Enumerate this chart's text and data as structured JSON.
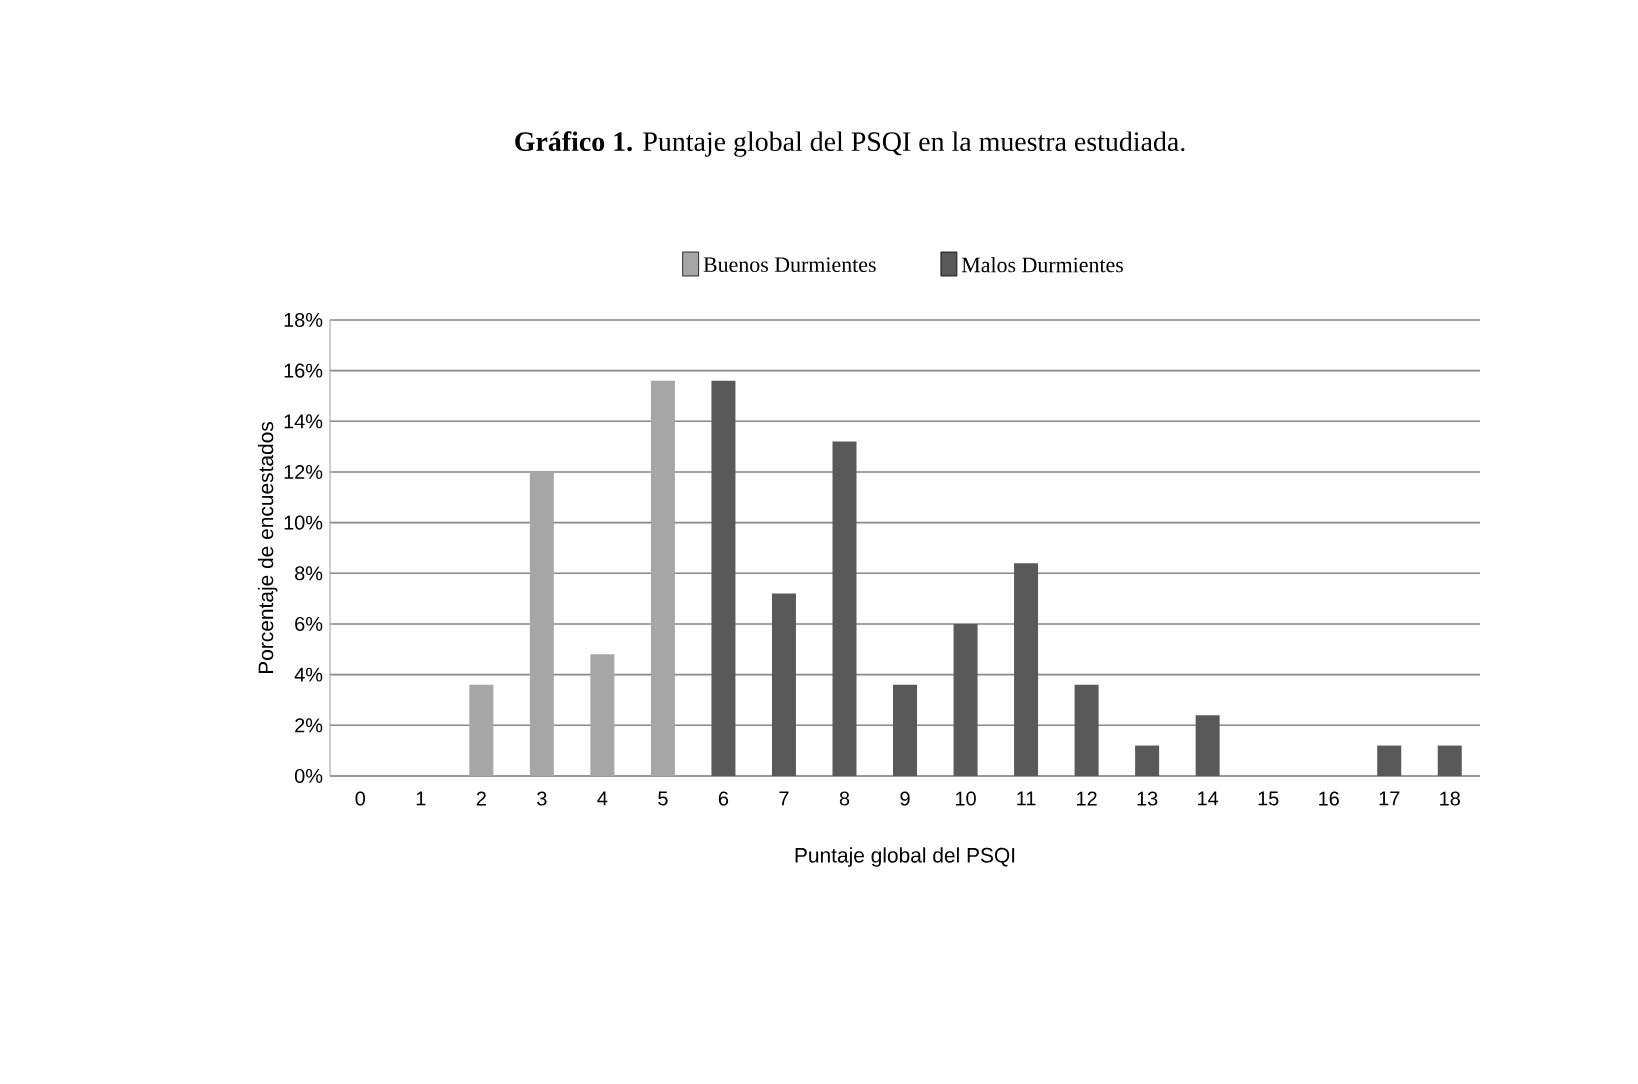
{
  "chart_data": {
    "type": "bar",
    "title": "**Gráfico 1.** Puntaje global del PSQI en la muestra estudiada.",
    "xlabel": "Puntaje global del PSQI",
    "ylabel": "Porcentaje de encuestados",
    "categories": [
      "0",
      "1",
      "2",
      "3",
      "4",
      "5",
      "6",
      "7",
      "8",
      "9",
      "10",
      "11",
      "12",
      "13",
      "14",
      "15",
      "16",
      "17",
      "18"
    ],
    "series": [
      {
        "name": "Buenos Durmientes",
        "color": "#a6a6a6",
        "values": [
          0,
          0,
          3.6,
          12.0,
          4.8,
          15.6,
          null,
          null,
          null,
          null,
          null,
          null,
          null,
          null,
          null,
          null,
          null,
          null,
          null
        ]
      },
      {
        "name": "Malos Durmientes",
        "color": "#595959",
        "values": [
          null,
          null,
          null,
          null,
          null,
          null,
          15.6,
          7.2,
          13.2,
          3.6,
          6.0,
          8.4,
          3.6,
          1.2,
          2.4,
          0,
          0,
          1.2,
          1.2
        ]
      }
    ],
    "ylim": [
      0,
      18
    ],
    "yticks": [
      {
        "value": 0,
        "label": "0%"
      },
      {
        "value": 2,
        "label": "2%"
      },
      {
        "value": 4,
        "label": "4%"
      },
      {
        "value": 6,
        "label": "6%"
      },
      {
        "value": 8,
        "label": "8%"
      },
      {
        "value": 10,
        "label": "10%"
      },
      {
        "value": 12,
        "label": "12%"
      },
      {
        "value": 14,
        "label": "14%"
      },
      {
        "value": 16,
        "label": "16%"
      },
      {
        "value": 18,
        "label": "18%"
      }
    ],
    "grid": "y",
    "legend": "top"
  }
}
